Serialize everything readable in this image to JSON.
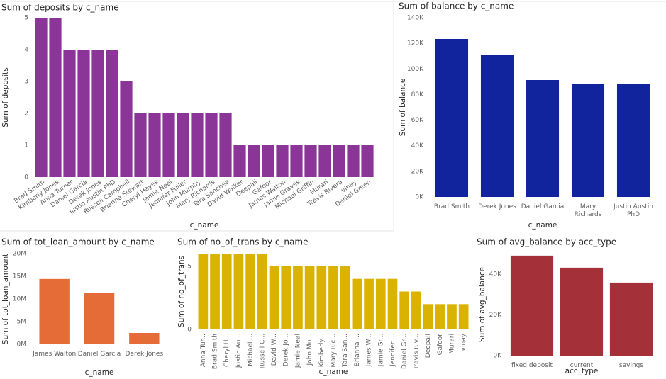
{
  "chart_data": [
    {
      "type": "bar",
      "title": "Sum of deposits by c_name",
      "x_label": "c_name",
      "y_label": "Sum of deposits",
      "color": "#8c3598",
      "categories": [
        "Brad Smith",
        "Kimberly Jones",
        "Anna Turner",
        "Daniel Garcia",
        "Derek Jones",
        "Justin Austin PhD",
        "Russell Campbell",
        "Brianna Stewart",
        "Cheryl Hayes",
        "Jamie Neal",
        "Jennifer Fuller",
        "John Murphy",
        "Mary Richards",
        "Tara Sanchez",
        "David Walker",
        "Deepali",
        "Gafoor",
        "James Walton",
        "Jamie Graves",
        "Michael Griffin",
        "Murari",
        "Travis Rivera",
        "vinay",
        "Daniel Green"
      ],
      "values": [
        5,
        5,
        4,
        4,
        4,
        4,
        3,
        2,
        2,
        2,
        2,
        2,
        2,
        2,
        1,
        1,
        1,
        1,
        1,
        1,
        1,
        1,
        1,
        1
      ],
      "ylim": [
        0,
        5
      ],
      "yticks": [
        0,
        1,
        2,
        3,
        4,
        5
      ]
    },
    {
      "type": "bar",
      "title": "Sum of balance by c_name",
      "x_label": "c_name",
      "y_label": "Sum of balance",
      "color": "#12239e",
      "categories": [
        "Brad Smith",
        "Derek Jones",
        "Daniel Garcia",
        "Mary Richards",
        "Justin Austin PhD"
      ],
      "values": [
        123400,
        111200,
        91300,
        88500,
        88000
      ],
      "ylim": [
        0,
        140000
      ],
      "yticks": [
        {
          "value": 0,
          "label": "0K"
        },
        {
          "value": 20000,
          "label": "20K"
        },
        {
          "value": 40000,
          "label": "40K"
        },
        {
          "value": 60000,
          "label": "60K"
        },
        {
          "value": 80000,
          "label": "80K"
        },
        {
          "value": 100000,
          "label": "100K"
        },
        {
          "value": 120000,
          "label": "120K"
        },
        {
          "value": 140000,
          "label": "140K"
        }
      ]
    },
    {
      "type": "bar",
      "title": "Sum of tot_loan_amount by c_name",
      "x_label": "c_name",
      "y_label": "Sum of tot_loan_amount",
      "color": "#e66c37",
      "categories": [
        "James Walton",
        "Daniel Garcia",
        "Derek Jones"
      ],
      "values": [
        14400000,
        11400000,
        2500000
      ],
      "ylim": [
        0,
        20000000
      ],
      "yticks": [
        {
          "value": 0,
          "label": "0M"
        },
        {
          "value": 5000000,
          "label": "5M"
        },
        {
          "value": 10000000,
          "label": "10M"
        },
        {
          "value": 15000000,
          "label": "15M"
        },
        {
          "value": 20000000,
          "label": "20M"
        }
      ]
    },
    {
      "type": "bar",
      "title": "Sum of no_of_trans by c_name",
      "x_label": "c_name",
      "y_label": "Sum of no_of_trans",
      "color": "#d9b300",
      "categories": [
        "Anna Tur...",
        "Brad Smith",
        "Cheryl H...",
        "Justin Au...",
        "Michael ...",
        "Russell C...",
        "David W...",
        "Derek Jo...",
        "Jamie Neal",
        "John Mu...",
        "Kimberly...",
        "Mary Ric...",
        "Tara San...",
        "Brianna ...",
        "James W...",
        "Jamie Gr...",
        "Jennifer ...",
        "Daniel Gr...",
        "Travis Riv...",
        "Deepali",
        "Gafoor",
        "Murari",
        "vinay"
      ],
      "values": [
        6,
        6,
        6,
        6,
        6,
        6,
        5,
        5,
        5,
        5,
        5,
        5,
        5,
        4,
        4,
        4,
        4,
        3,
        3,
        2,
        2,
        2,
        2
      ],
      "ylim": [
        0,
        6
      ],
      "yticks": [
        0,
        5
      ]
    },
    {
      "type": "bar",
      "title": "Sum of avg_balance by acc_type",
      "x_label": "acc_type",
      "y_label": "Sum of avg_balance",
      "color": "#a4303a",
      "categories": [
        "fixed deposit",
        "current",
        "savings"
      ],
      "values": [
        49000,
        43100,
        35800
      ],
      "ylim": [
        0,
        50000
      ],
      "yticks": [
        {
          "value": 0,
          "label": "0K"
        },
        {
          "value": 20000,
          "label": "20K"
        },
        {
          "value": 40000,
          "label": "40K"
        }
      ]
    }
  ]
}
